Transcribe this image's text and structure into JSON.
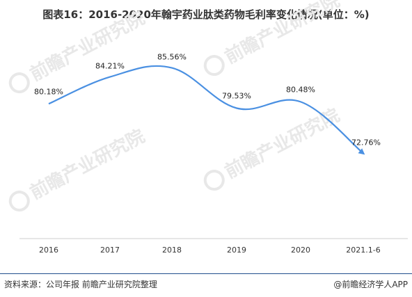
{
  "title": "图表16：2016-2020年翰宇药业肽类药物毛利率变化情况(单位：%)",
  "chart_data": {
    "type": "line",
    "categories": [
      "2016",
      "2017",
      "2018",
      "2019",
      "2020",
      "2021.1-6"
    ],
    "series": [
      {
        "values": [
          80.18,
          84.21,
          85.56,
          79.53,
          80.48,
          72.76
        ],
        "labels": [
          "80.18%",
          "84.21%",
          "85.56%",
          "79.53%",
          "80.48%",
          "72.76%"
        ]
      }
    ],
    "ylim": [
      60,
      90
    ],
    "grid": false,
    "legend": "none",
    "line_color": "#4a90e2",
    "axis_color": "#cccccc"
  },
  "footer": {
    "source": "资料来源：公司年报 前瞻产业研究院整理",
    "brand": "@前瞻经济学人APP"
  },
  "watermark": {
    "text": "前瞻产业研究院",
    "color": "#e8e8e8"
  }
}
